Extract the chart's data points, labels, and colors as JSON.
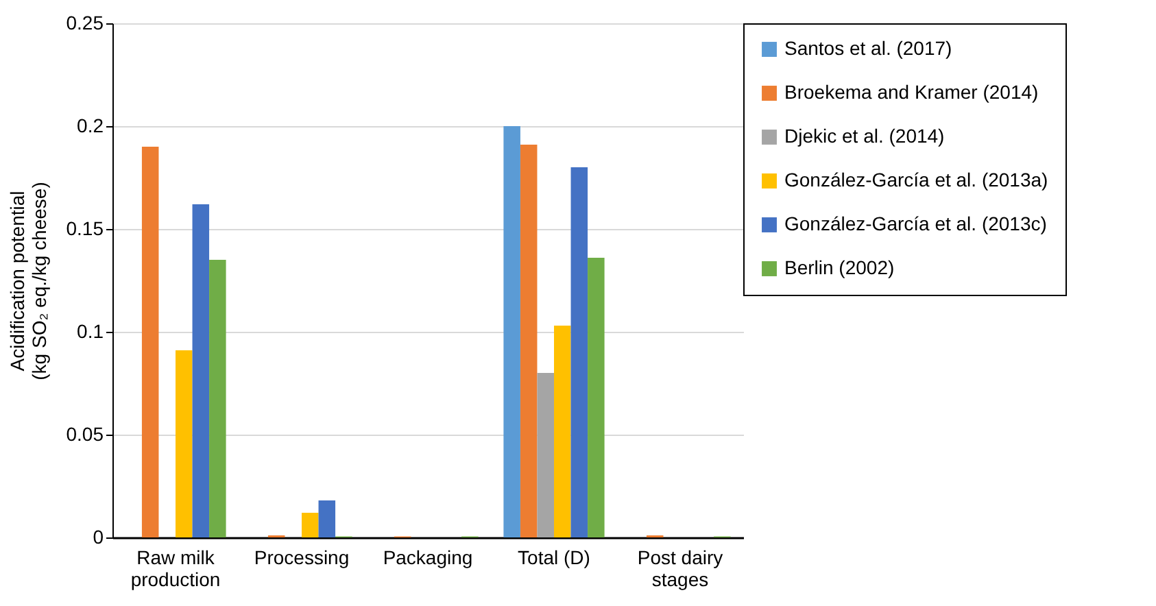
{
  "chart_data": {
    "type": "bar",
    "ylabel": "Acidification potential (kg SO₂ eq./kg cheese)",
    "categories": [
      "Raw milk production",
      "Processing",
      "Packaging",
      "Total (D)",
      "Post dairy stages"
    ],
    "series": [
      {
        "name": "Santos et al. (2017)",
        "color": "#5b9bd5",
        "values": [
          null,
          null,
          null,
          0.2,
          null
        ]
      },
      {
        "name": "Broekema and Kramer (2014)",
        "color": "#ed7d31",
        "values": [
          0.19,
          0.001,
          0.0005,
          0.191,
          0.001
        ]
      },
      {
        "name": "Djekic et al. (2014)",
        "color": "#a5a5a5",
        "values": [
          null,
          null,
          null,
          0.08,
          null
        ]
      },
      {
        "name": "González-García et al. (2013a)",
        "color": "#ffc000",
        "values": [
          0.091,
          0.012,
          null,
          0.103,
          null
        ]
      },
      {
        "name": "González-García et al. (2013c)",
        "color": "#4472c4",
        "values": [
          0.162,
          0.018,
          null,
          0.18,
          null
        ]
      },
      {
        "name": "Berlin (2002)",
        "color": "#70ad47",
        "values": [
          0.135,
          0.0005,
          0.0005,
          0.136,
          0.0005
        ]
      }
    ],
    "ylim": [
      0,
      0.25
    ],
    "yticks": [
      0,
      0.05,
      0.1,
      0.15,
      0.2,
      0.25
    ],
    "grid": "y",
    "legend": "right"
  }
}
